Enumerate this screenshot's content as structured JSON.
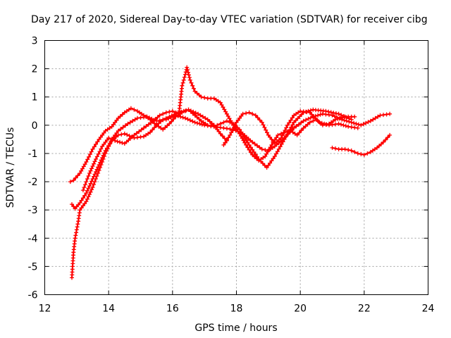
{
  "chart_data": {
    "type": "scatter",
    "title": "Day 217 of 2020, Sidereal Day-to-day VTEC variation (SDTVAR) for receiver cibg",
    "xlabel": "GPS time / hours",
    "ylabel": "SDTVAR / TECUs",
    "xlim": [
      12,
      24
    ],
    "ylim": [
      -6,
      3
    ],
    "xticks": [
      "12",
      "14",
      "16",
      "18",
      "20",
      "22",
      "24"
    ],
    "yticks": [
      "-6",
      "-5",
      "-4",
      "-3",
      "-2",
      "-1",
      "0",
      "1",
      "2",
      "3"
    ],
    "grid": true,
    "marker": "+",
    "color": "#ff0000",
    "series": [
      {
        "name": "track-1",
        "points": [
          [
            12.85,
            -5.4
          ],
          [
            12.9,
            -4.5
          ],
          [
            12.95,
            -4.0
          ],
          [
            13.05,
            -3.4
          ],
          [
            13.1,
            -3.0
          ],
          [
            13.3,
            -2.7
          ],
          [
            13.5,
            -2.2
          ],
          [
            13.7,
            -1.6
          ],
          [
            13.9,
            -1.0
          ],
          [
            14.1,
            -0.5
          ],
          [
            14.3,
            -0.2
          ],
          [
            14.6,
            0.05
          ],
          [
            14.9,
            0.25
          ],
          [
            15.2,
            0.3
          ],
          [
            15.5,
            0.15
          ],
          [
            15.8,
            0.2
          ],
          [
            16.1,
            0.35
          ],
          [
            16.4,
            0.25
          ],
          [
            16.7,
            0.1
          ],
          [
            17.0,
            0.0
          ],
          [
            17.3,
            -0.05
          ],
          [
            17.6,
            -0.1
          ],
          [
            17.9,
            -0.15
          ],
          [
            18.2,
            -0.3
          ],
          [
            18.5,
            -0.6
          ],
          [
            18.8,
            -0.85
          ],
          [
            19.0,
            -0.9
          ],
          [
            19.2,
            -0.75
          ],
          [
            19.5,
            -0.45
          ],
          [
            19.8,
            -0.1
          ],
          [
            20.1,
            0.15
          ],
          [
            20.4,
            0.3
          ],
          [
            20.7,
            0.4
          ],
          [
            21.0,
            0.35
          ],
          [
            21.3,
            0.2
          ],
          [
            21.6,
            0.1
          ],
          [
            21.9,
            0.0
          ],
          [
            22.2,
            0.15
          ],
          [
            22.5,
            0.35
          ],
          [
            22.8,
            0.4
          ]
        ]
      },
      {
        "name": "track-2",
        "points": [
          [
            12.8,
            -2.0
          ],
          [
            12.9,
            -1.95
          ],
          [
            13.1,
            -1.7
          ],
          [
            13.3,
            -1.3
          ],
          [
            13.5,
            -0.85
          ],
          [
            13.7,
            -0.5
          ],
          [
            13.9,
            -0.2
          ],
          [
            14.1,
            -0.05
          ],
          [
            14.3,
            0.25
          ],
          [
            14.5,
            0.45
          ],
          [
            14.7,
            0.6
          ],
          [
            14.9,
            0.5
          ],
          [
            15.1,
            0.35
          ],
          [
            15.3,
            0.2
          ],
          [
            15.5,
            0.0
          ],
          [
            15.7,
            -0.15
          ],
          [
            15.9,
            0.05
          ],
          [
            16.1,
            0.3
          ],
          [
            16.3,
            0.45
          ],
          [
            16.5,
            0.55
          ],
          [
            16.7,
            0.35
          ],
          [
            16.9,
            0.15
          ],
          [
            17.1,
            0.0
          ],
          [
            17.3,
            -0.05
          ],
          [
            17.5,
            0.05
          ],
          [
            17.7,
            0.15
          ],
          [
            17.9,
            0.05
          ],
          [
            18.1,
            -0.15
          ],
          [
            18.4,
            -0.7
          ],
          [
            18.7,
            -1.2
          ],
          [
            18.95,
            -1.5
          ],
          [
            19.2,
            -1.1
          ],
          [
            19.5,
            -0.5
          ],
          [
            19.8,
            0.1
          ],
          [
            20.1,
            0.45
          ],
          [
            20.4,
            0.55
          ],
          [
            20.8,
            0.5
          ],
          [
            21.2,
            0.4
          ],
          [
            21.6,
            0.2
          ]
        ]
      },
      {
        "name": "track-3",
        "points": [
          [
            12.85,
            -2.8
          ],
          [
            12.95,
            -2.95
          ],
          [
            13.1,
            -2.75
          ],
          [
            13.3,
            -2.4
          ],
          [
            13.5,
            -1.9
          ],
          [
            13.7,
            -1.4
          ],
          [
            13.9,
            -0.9
          ],
          [
            14.1,
            -0.55
          ],
          [
            14.3,
            -0.35
          ],
          [
            14.5,
            -0.3
          ],
          [
            14.8,
            -0.45
          ],
          [
            15.1,
            -0.4
          ],
          [
            15.3,
            -0.25
          ],
          [
            15.5,
            0.0
          ],
          [
            15.7,
            0.2
          ],
          [
            15.9,
            0.3
          ],
          [
            16.2,
            0.45
          ],
          [
            16.5,
            0.55
          ],
          [
            16.8,
            0.4
          ],
          [
            17.1,
            0.2
          ],
          [
            17.3,
            0.0
          ],
          [
            17.5,
            -0.3
          ],
          [
            17.7,
            -0.55
          ],
          [
            17.6,
            -0.7
          ],
          [
            17.8,
            -0.35
          ],
          [
            18.0,
            0.1
          ],
          [
            18.2,
            0.4
          ],
          [
            18.4,
            0.45
          ],
          [
            18.6,
            0.35
          ],
          [
            18.8,
            0.1
          ],
          [
            19.0,
            -0.35
          ],
          [
            19.2,
            -0.65
          ],
          [
            19.4,
            -0.45
          ],
          [
            19.6,
            0.0
          ],
          [
            19.8,
            0.35
          ],
          [
            20.0,
            0.5
          ],
          [
            20.3,
            0.45
          ],
          [
            20.6,
            0.1
          ],
          [
            20.9,
            0.0
          ],
          [
            21.2,
            0.05
          ],
          [
            21.5,
            -0.05
          ],
          [
            21.8,
            -0.1
          ]
        ]
      },
      {
        "name": "track-4",
        "points": [
          [
            13.2,
            -2.3
          ],
          [
            13.4,
            -1.7
          ],
          [
            13.6,
            -1.2
          ],
          [
            13.8,
            -0.75
          ],
          [
            14.0,
            -0.45
          ],
          [
            14.2,
            -0.55
          ],
          [
            14.5,
            -0.65
          ],
          [
            14.8,
            -0.35
          ],
          [
            15.1,
            -0.1
          ],
          [
            15.4,
            0.15
          ],
          [
            15.6,
            0.35
          ],
          [
            15.8,
            0.45
          ],
          [
            16.0,
            0.5
          ],
          [
            16.2,
            0.4
          ],
          [
            16.25,
            0.9
          ],
          [
            16.3,
            1.4
          ],
          [
            16.4,
            1.8
          ],
          [
            16.45,
            2.05
          ],
          [
            16.55,
            1.6
          ],
          [
            16.7,
            1.2
          ],
          [
            16.9,
            1.0
          ],
          [
            17.1,
            0.95
          ],
          [
            17.3,
            0.95
          ],
          [
            17.5,
            0.8
          ],
          [
            17.7,
            0.4
          ],
          [
            17.9,
            0.0
          ],
          [
            18.1,
            -0.3
          ],
          [
            18.3,
            -0.7
          ],
          [
            18.5,
            -1.05
          ],
          [
            18.7,
            -1.25
          ],
          [
            18.9,
            -1.1
          ],
          [
            19.1,
            -0.7
          ],
          [
            19.3,
            -0.35
          ],
          [
            19.5,
            -0.25
          ],
          [
            19.7,
            -0.2
          ],
          [
            19.9,
            -0.35
          ],
          [
            20.1,
            -0.1
          ],
          [
            20.3,
            0.1
          ],
          [
            20.5,
            0.2
          ],
          [
            20.7,
            0.0
          ],
          [
            20.9,
            0.05
          ],
          [
            21.1,
            0.2
          ],
          [
            21.4,
            0.3
          ],
          [
            21.7,
            0.3
          ]
        ]
      },
      {
        "name": "track-5",
        "points": [
          [
            21.0,
            -0.8
          ],
          [
            21.2,
            -0.85
          ],
          [
            21.4,
            -0.85
          ],
          [
            21.6,
            -0.9
          ],
          [
            21.8,
            -1.0
          ],
          [
            22.0,
            -1.05
          ],
          [
            22.2,
            -0.95
          ],
          [
            22.4,
            -0.8
          ],
          [
            22.6,
            -0.6
          ],
          [
            22.8,
            -0.35
          ]
        ]
      }
    ]
  }
}
